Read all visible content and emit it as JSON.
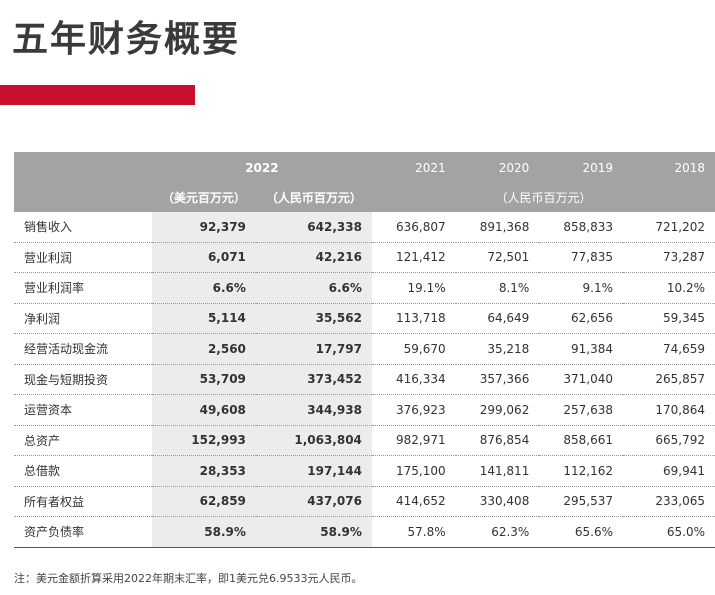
{
  "header": {
    "title": "五年财务概要"
  },
  "table": {
    "columns": [
      "2022",
      "2021",
      "2020",
      "2019",
      "2018"
    ],
    "units": [
      "（美元百万元）",
      "（人民币百万元）",
      "（人民币百万元）"
    ],
    "rows": [
      [
        "销售收入",
        "92,379",
        "642,338",
        "636,807",
        "891,368",
        "858,833",
        "721,202"
      ],
      [
        "营业利润",
        "6,071",
        "42,216",
        "121,412",
        "72,501",
        "77,835",
        "73,287"
      ],
      [
        "营业利润率",
        "6.6%",
        "6.6%",
        "19.1%",
        "8.1%",
        "9.1%",
        "10.2%"
      ],
      [
        "净利润",
        "5,114",
        "35,562",
        "113,718",
        "64,649",
        "62,656",
        "59,345"
      ],
      [
        "经营活动现金流",
        "2,560",
        "17,797",
        "59,670",
        "35,218",
        "91,384",
        "74,659"
      ],
      [
        "现金与短期投资",
        "53,709",
        "373,452",
        "416,334",
        "357,366",
        "371,040",
        "265,857"
      ],
      [
        "运营资本",
        "49,608",
        "344,938",
        "376,923",
        "299,062",
        "257,638",
        "170,864"
      ],
      [
        "总资产",
        "152,993",
        "1,063,804",
        "982,971",
        "876,854",
        "858,661",
        "665,792"
      ],
      [
        "总借款",
        "28,353",
        "197,144",
        "175,100",
        "141,811",
        "112,162",
        "69,941"
      ],
      [
        "所有者权益",
        "62,859",
        "437,076",
        "414,652",
        "330,408",
        "295,537",
        "233,065"
      ],
      [
        "资产负债率",
        "58.9%",
        "58.9%",
        "57.8%",
        "62.3%",
        "65.6%",
        "65.0%"
      ]
    ]
  },
  "footnote": "注：美元金额折算采用2022年期末汇率，即1美元兑6.9533元人民币。"
}
